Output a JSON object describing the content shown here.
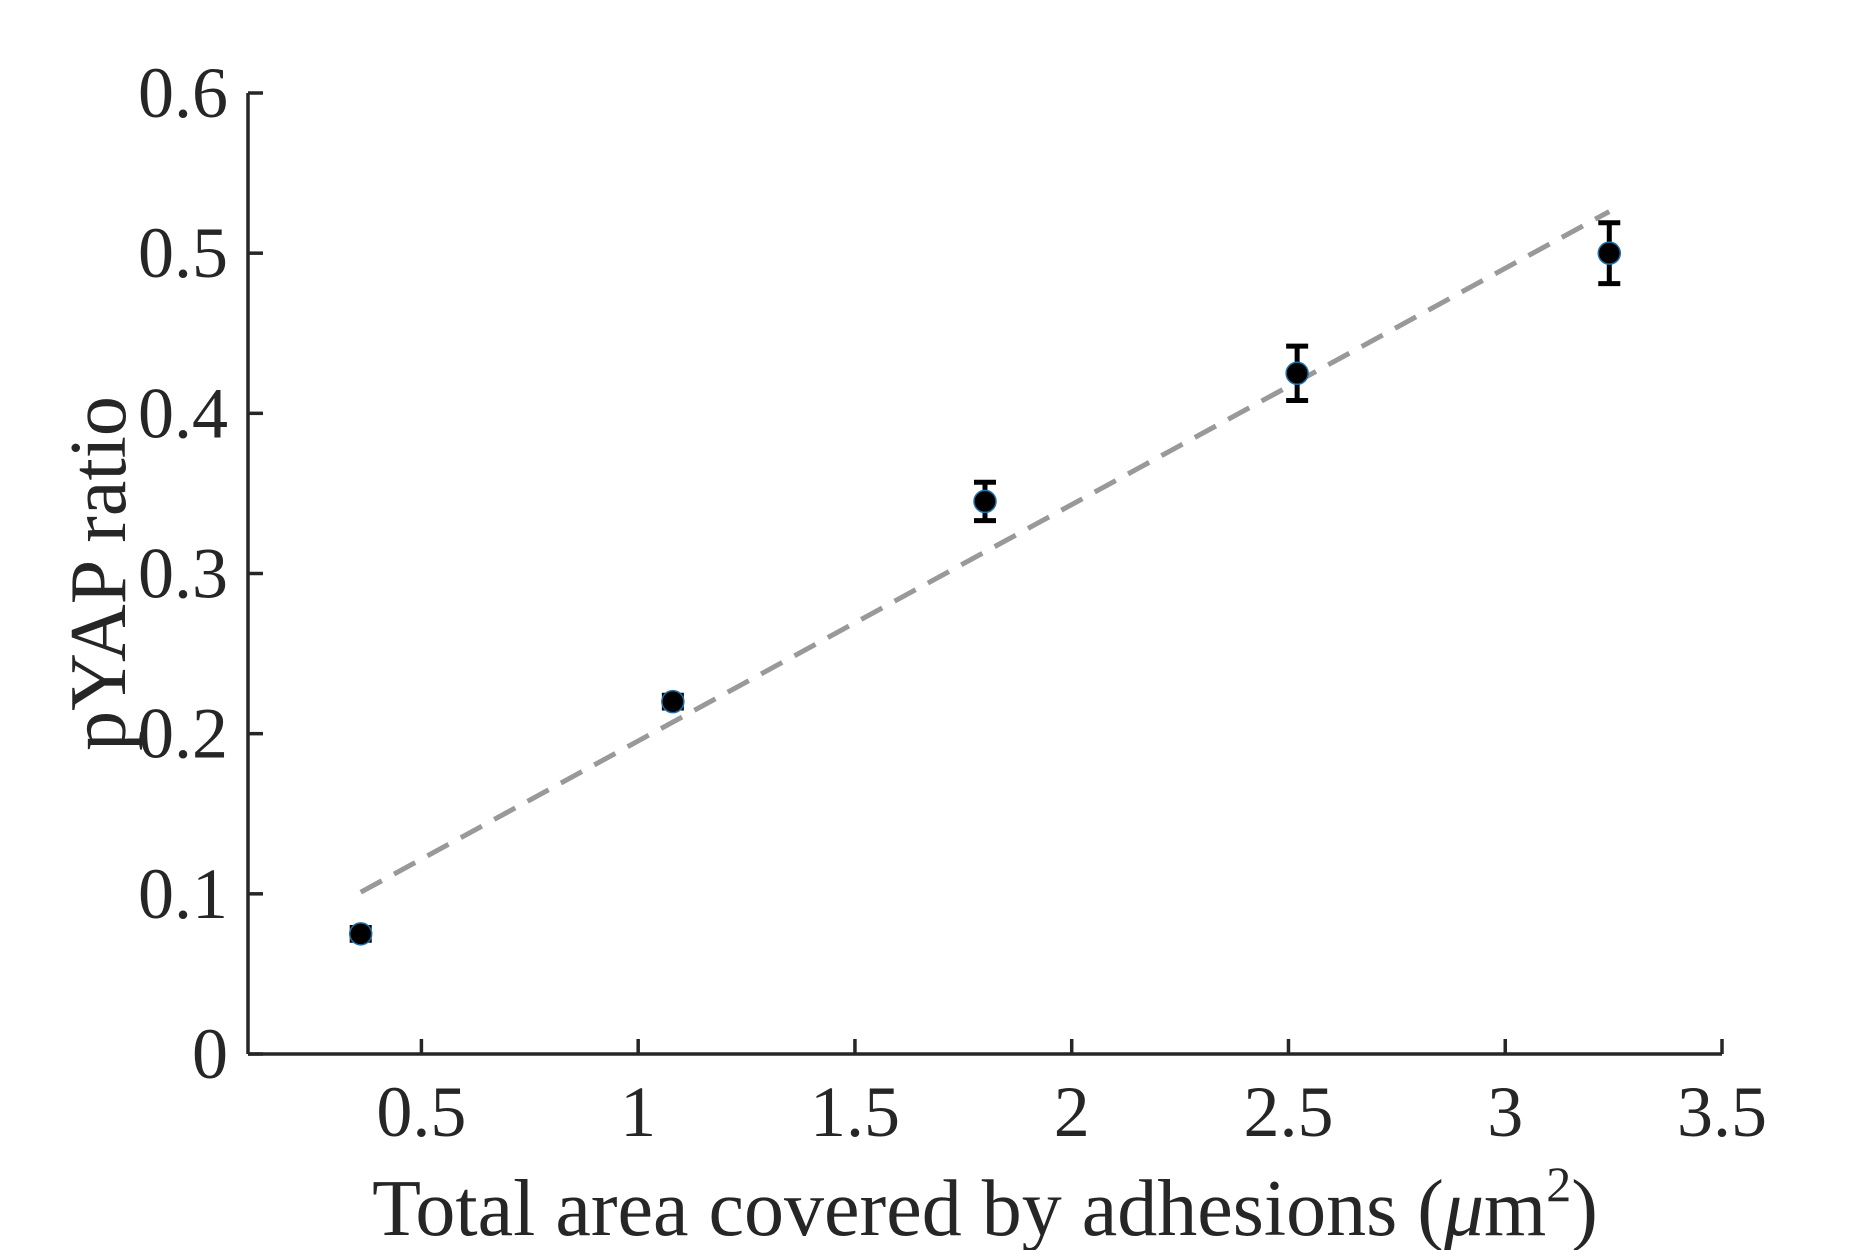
{
  "chart_data": {
    "type": "scatter",
    "title": "",
    "xlabel": "Total area covered by adhesions (μm²)",
    "xlabel_main": "Total area covered by adhesions (",
    "xlabel_mu": "μ",
    "xlabel_unit": "m",
    "xlabel_exp": "2",
    "xlabel_close": ")",
    "ylabel": "pYAP ratio",
    "xlim": [
      0.1,
      3.5
    ],
    "ylim": [
      0,
      0.6
    ],
    "xticks": [
      "0.5",
      "1",
      "1.5",
      "2",
      "2.5",
      "3",
      "3.5"
    ],
    "yticks": [
      "0",
      "0.1",
      "0.2",
      "0.3",
      "0.4",
      "0.5",
      "0.6"
    ],
    "grid": false,
    "series": [
      {
        "x": [
          0.36,
          1.08,
          1.8,
          2.52,
          3.24
        ],
        "y": [
          0.075,
          0.22,
          0.345,
          0.425,
          0.5
        ],
        "err": [
          0.004,
          0.004,
          0.012,
          0.017,
          0.019
        ],
        "marker_color": "#000000",
        "marker_edge_color": "#1f6fa8"
      }
    ],
    "fit_line": {
      "x": [
        0.36,
        3.24
      ],
      "y": [
        0.101,
        0.526
      ],
      "style": "dashed",
      "color": "#999999"
    }
  }
}
